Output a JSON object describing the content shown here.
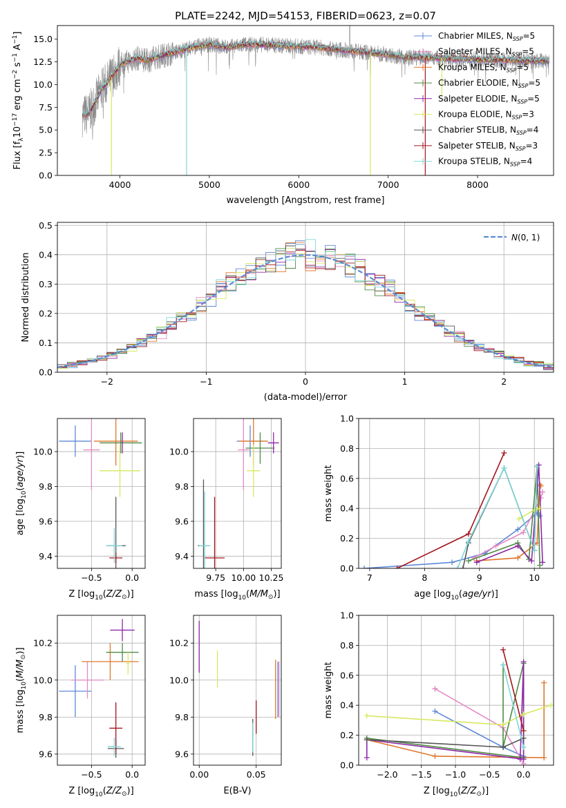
{
  "colors": {
    "Chabrier MILES": "#5e87d6",
    "Salpeter MILES": "#e58ac4",
    "Kroupa MILES": "#e0762a",
    "Chabrier ELODIE": "#4f8a43",
    "Salpeter ELODIE": "#8f27a8",
    "Kroupa ELODIE": "#d8e860",
    "Chabrier STELIB": "#555555",
    "Salpeter STELIB": "#a3141d",
    "Kroupa STELIB": "#7fd6d8",
    "gray": "#8a8a8a",
    "grid": "#b0b0b0",
    "normal": "#5b8ad6"
  },
  "chart_data": [
    {
      "id": "spectrum",
      "type": "line",
      "title": "PLATE=2242, MJD=54153, FIBERID=0623, z=0.07",
      "xlabel": "wavelength [Angstrom, rest frame]",
      "ylabel": "Flux [f_λ 10^-17 erg cm^-2 s^-1 A^-1]",
      "xlim": [
        3300,
        8850
      ],
      "ylim": [
        0,
        16.5
      ],
      "xticks": [
        4000,
        5000,
        6000,
        7000,
        8000
      ],
      "yticks": [
        0.0,
        2.5,
        5.0,
        7.5,
        10.0,
        12.5,
        15.0
      ],
      "grid": false,
      "legend_position": "right",
      "legend": [
        {
          "model": "Chabrier MILES",
          "nssp": "5"
        },
        {
          "model": "Salpeter MILES",
          "nssp": "5"
        },
        {
          "model": "Kroupa MILES",
          "nssp": "5"
        },
        {
          "model": "Chabrier ELODIE",
          "nssp": "5"
        },
        {
          "model": "Salpeter ELODIE",
          "nssp": "5"
        },
        {
          "model": "Kroupa ELODIE",
          "nssp": "3"
        },
        {
          "model": "Chabrier STELIB",
          "nssp": "4"
        },
        {
          "model": "Salpeter STELIB",
          "nssp": "3"
        },
        {
          "model": "Kroupa STELIB",
          "nssp": "4"
        }
      ],
      "continuum": {
        "x": [
          3580,
          3650,
          3700,
          3750,
          3800,
          3850,
          3900,
          3950,
          4000,
          4100,
          4200,
          4300,
          4400,
          4600,
          4800,
          5000,
          5200,
          5400,
          5600,
          5800,
          6000,
          6200,
          6400,
          6600,
          6800,
          7000,
          7200,
          7400,
          7600,
          7800,
          8000,
          8200,
          8400,
          8600,
          8800
        ],
        "y": [
          6.6,
          6.8,
          7.6,
          8.6,
          9.6,
          10.1,
          10.8,
          11.3,
          12.2,
          12.6,
          12.9,
          12.6,
          13.0,
          13.5,
          14.1,
          14.4,
          14.1,
          14.4,
          14.4,
          14.3,
          14.2,
          14.1,
          13.9,
          13.7,
          13.5,
          13.3,
          13.0,
          13.0,
          12.9,
          12.8,
          12.8,
          12.7,
          12.7,
          12.6,
          12.6
        ]
      },
      "spikes": [
        {
          "x": 3905,
          "y": 0.0,
          "series": "Kroupa ELODIE"
        },
        {
          "x": 4745,
          "y": 0.0,
          "series": "Kroupa STELIB"
        },
        {
          "x": 6800,
          "y": 0.0,
          "series": "Kroupa ELODIE"
        },
        {
          "x": 7415,
          "y": 0.0,
          "series": "Salpeter STELIB"
        },
        {
          "x": 7600,
          "y": 8.7,
          "series": "Kroupa ELODIE"
        },
        {
          "x": 6570,
          "y": 17.5,
          "series": "gray"
        }
      ]
    },
    {
      "id": "residuals",
      "type": "bar",
      "xlabel": "(data-model)/error",
      "ylabel": "Normed distribution",
      "xlim": [
        -2.5,
        2.5
      ],
      "ylim": [
        0,
        0.51
      ],
      "xticks": [
        -2,
        -1,
        0,
        1,
        2
      ],
      "xticklabels": [
        "−2",
        "−1",
        "0",
        "1",
        "2"
      ],
      "yticks": [
        0.0,
        0.1,
        0.2,
        0.3,
        0.4,
        0.5
      ],
      "grid": true,
      "bin_width": 0.1,
      "series_count": 9,
      "legend_position": "top-right",
      "legend": "N(0,1)"
    },
    {
      "id": "age-vs-Z",
      "type": "scatter",
      "xlabel": "Z [log10(Z/Z⊙)]",
      "ylabel": "age  [log10(age/yr)]",
      "xlim": [
        -0.92,
        0.16
      ],
      "ylim": [
        9.33,
        10.19
      ],
      "xticks": [
        -0.5,
        0.0
      ],
      "xticklabels": [
        "−0.5",
        "0.0"
      ],
      "yticks": [
        9.4,
        9.6,
        9.8,
        10.0
      ],
      "grid": true,
      "points": [
        {
          "series": "Chabrier MILES",
          "x": -0.7,
          "y": 10.06,
          "xerr": 0.2,
          "yerr": 0.09
        },
        {
          "series": "Salpeter MILES",
          "x": -0.5,
          "y": 10.01,
          "xerr": 0.1,
          "yerr": 0.23
        },
        {
          "series": "Kroupa MILES",
          "x": -0.2,
          "y": 10.06,
          "xerr": 0.27,
          "yerr": 0.14
        },
        {
          "series": "Chabrier ELODIE",
          "x": -0.14,
          "y": 10.05,
          "xerr": 0.26,
          "yerr": 0.06
        },
        {
          "series": "Salpeter ELODIE",
          "x": -0.12,
          "y": 10.05,
          "xerr": 0.01,
          "yerr": 0.06
        },
        {
          "series": "Kroupa ELODIE",
          "x": -0.15,
          "y": 9.89,
          "xerr": 0.25,
          "yerr": 0.15
        },
        {
          "series": "Chabrier STELIB",
          "x": -0.2,
          "y": 9.46,
          "xerr": 0.12,
          "yerr": 0.28
        },
        {
          "series": "Salpeter STELIB",
          "x": -0.2,
          "y": 9.39,
          "xerr": 0.08,
          "yerr": 0.03
        },
        {
          "series": "Kroupa STELIB",
          "x": -0.22,
          "y": 9.46,
          "xerr": 0.1,
          "yerr": 0.1
        }
      ]
    },
    {
      "id": "age-vs-mass",
      "type": "scatter",
      "xlabel": "mass [log10(M/M⊙)]",
      "ylabel": "",
      "xlim": [
        9.55,
        10.34
      ],
      "ylim": [
        9.33,
        10.19
      ],
      "xticks": [
        9.75,
        10.0,
        10.25
      ],
      "xticklabels": [
        "9.75",
        "10.00",
        "10.25"
      ],
      "yticks": [
        9.4,
        9.6,
        9.8,
        10.0
      ],
      "grid": true,
      "points": [
        {
          "series": "Chabrier MILES",
          "x": 10.06,
          "y": 10.06,
          "xerr": 0.12,
          "yerr": 0.09
        },
        {
          "series": "Salpeter MILES",
          "x": 10.0,
          "y": 10.01,
          "xerr": 0.05,
          "yerr": 0.23
        },
        {
          "series": "Kroupa MILES",
          "x": 10.09,
          "y": 10.06,
          "xerr": 0.13,
          "yerr": 0.14
        },
        {
          "series": "Chabrier ELODIE",
          "x": 10.15,
          "y": 10.02,
          "xerr": 0.13,
          "yerr": 0.09
        },
        {
          "series": "Salpeter ELODIE",
          "x": 10.27,
          "y": 10.05,
          "xerr": 0.05,
          "yerr": 0.06
        },
        {
          "series": "Kroupa ELODIE",
          "x": 10.09,
          "y": 9.89,
          "xerr": 0.06,
          "yerr": 0.15
        },
        {
          "series": "Chabrier STELIB",
          "x": 9.64,
          "y": 9.46,
          "xerr": 0.05,
          "yerr": 0.38
        },
        {
          "series": "Salpeter STELIB",
          "x": 9.74,
          "y": 9.39,
          "xerr": 0.09,
          "yerr": 0.35
        },
        {
          "series": "Kroupa STELIB",
          "x": 9.65,
          "y": 9.46,
          "xerr": 0.05,
          "yerr": 0.31
        }
      ]
    },
    {
      "id": "weight-vs-age",
      "type": "line",
      "xlabel": "age  [log10(age/yr)]",
      "ylabel": "mass weight",
      "xlim": [
        6.8,
        10.35
      ],
      "ylim": [
        0,
        1.0
      ],
      "xticks": [
        7,
        8,
        9,
        10
      ],
      "yticks": [
        0.0,
        0.2,
        0.4,
        0.6,
        0.8,
        1.0
      ],
      "grid": true,
      "series": [
        {
          "name": "Chabrier MILES",
          "x": [
            6.9,
            8.5,
            9.1,
            9.7,
            10.05,
            10.1
          ],
          "y": [
            0.0,
            0.04,
            0.1,
            0.26,
            0.37,
            0.35
          ]
        },
        {
          "name": "Salpeter MILES",
          "x": [
            8.9,
            9.3,
            9.8,
            10.12,
            10.15
          ],
          "y": [
            0.07,
            0.15,
            0.24,
            0.47,
            0.51
          ]
        },
        {
          "name": "Kroupa MILES",
          "x": [
            8.95,
            9.7,
            10.05,
            10.1,
            10.12
          ],
          "y": [
            0.05,
            0.07,
            0.17,
            0.56,
            0.55
          ]
        },
        {
          "name": "Chabrier ELODIE",
          "x": [
            8.8,
            9.7,
            9.9,
            10.05,
            10.1
          ],
          "y": [
            0.05,
            0.17,
            0.06,
            0.68,
            0.02
          ]
        },
        {
          "name": "Salpeter ELODIE",
          "x": [
            8.95,
            9.7,
            9.95,
            10.08,
            10.15
          ],
          "y": [
            0.04,
            0.15,
            0.05,
            0.69,
            0.04
          ]
        },
        {
          "name": "Kroupa ELODIE",
          "x": [
            9.72,
            10.0,
            10.1
          ],
          "y": [
            0.33,
            0.39,
            0.4
          ]
        },
        {
          "name": "Chabrier STELIB",
          "x": [
            8.7,
            8.8,
            9.45,
            10.0,
            10.05
          ],
          "y": [
            0.0,
            0.17,
            0.67,
            0.12,
            0.68
          ]
        },
        {
          "name": "Salpeter STELIB",
          "x": [
            7.5,
            8.8,
            9.45
          ],
          "y": [
            0.0,
            0.23,
            0.77
          ]
        },
        {
          "name": "Kroupa STELIB",
          "x": [
            8.6,
            8.8,
            9.45,
            10.0,
            10.05
          ],
          "y": [
            0.0,
            0.18,
            0.67,
            0.12,
            0.68
          ]
        }
      ]
    },
    {
      "id": "mass-vs-Z",
      "type": "scatter",
      "xlabel": "Z [log10(Z/Z⊙)]",
      "ylabel": "mass [log10(M/M⊙)]",
      "xlim": [
        -0.92,
        0.16
      ],
      "ylim": [
        9.54,
        10.35
      ],
      "xticks": [
        -0.5,
        0.0
      ],
      "xticklabels": [
        "−0.5",
        "0.0"
      ],
      "yticks": [
        9.6,
        9.8,
        10.0,
        10.2
      ],
      "grid": true,
      "points": [
        {
          "series": "Chabrier MILES",
          "x": -0.7,
          "y": 9.94,
          "xerr": 0.2,
          "yerr": 0.14
        },
        {
          "series": "Salpeter MILES",
          "x": -0.55,
          "y": 10.0,
          "xerr": 0.2,
          "yerr": 0.1
        },
        {
          "series": "Kroupa MILES",
          "x": -0.27,
          "y": 10.1,
          "xerr": 0.35,
          "yerr": 0.1
        },
        {
          "series": "Chabrier ELODIE",
          "x": -0.12,
          "y": 10.15,
          "xerr": 0.2,
          "yerr": 0.05
        },
        {
          "series": "Salpeter ELODIE",
          "x": -0.12,
          "y": 10.27,
          "xerr": 0.15,
          "yerr": 0.06
        },
        {
          "series": "Kroupa ELODIE",
          "x": -0.05,
          "y": 10.09,
          "xerr": 0.02,
          "yerr": 0.06
        },
        {
          "series": "Chabrier STELIB",
          "x": -0.2,
          "y": 9.63,
          "xerr": 0.1,
          "yerr": 0.05
        },
        {
          "series": "Salpeter STELIB",
          "x": -0.2,
          "y": 9.74,
          "xerr": 0.08,
          "yerr": 0.14
        },
        {
          "series": "Kroupa STELIB",
          "x": -0.22,
          "y": 9.64,
          "xerr": 0.08,
          "yerr": 0.05
        }
      ]
    },
    {
      "id": "mass-vs-EBV",
      "type": "scatter",
      "xlabel": "E(B-V)",
      "ylabel": "",
      "xlim": [
        -0.005,
        0.072
      ],
      "ylim": [
        9.54,
        10.35
      ],
      "xticks": [
        0.0,
        0.05
      ],
      "xticklabels": [
        "0.00",
        "0.05"
      ],
      "yticks": [
        9.6,
        9.8,
        10.0,
        10.2
      ],
      "grid": true,
      "points": [
        {
          "series": "Salpeter ELODIE",
          "x": 0.0,
          "y": 10.18,
          "xerr": 0.0,
          "yerr": 0.14
        },
        {
          "series": "Kroupa ELODIE",
          "x": 0.016,
          "y": 10.06,
          "xerr": 0.0,
          "yerr": 0.1
        },
        {
          "series": "Chabrier STELIB",
          "x": 0.047,
          "y": 9.69,
          "xerr": 0.0,
          "yerr": 0.1
        },
        {
          "series": "Kroupa STELIB",
          "x": 0.047,
          "y": 9.69,
          "xerr": 0.0,
          "yerr": 0.08
        },
        {
          "series": "Salpeter STELIB",
          "x": 0.05,
          "y": 9.8,
          "xerr": 0.0,
          "yerr": 0.09
        },
        {
          "series": "Kroupa MILES",
          "x": 0.067,
          "y": 9.95,
          "xerr": 0.0,
          "yerr": 0.16
        },
        {
          "series": "Chabrier MILES",
          "x": 0.069,
          "y": 9.95,
          "xerr": 0.0,
          "yerr": 0.15
        },
        {
          "series": "Salpeter MILES",
          "x": 0.07,
          "y": 9.95,
          "xerr": 0.0,
          "yerr": 0.15
        }
      ]
    },
    {
      "id": "weight-vs-Z",
      "type": "line",
      "xlabel": "Z [log10(Z/Z⊙)]",
      "ylabel": "mass weight",
      "xlim": [
        -2.42,
        0.44
      ],
      "ylim": [
        0,
        1.0
      ],
      "xticks": [
        -2.0,
        -1.5,
        -1.0,
        -0.5,
        0.0
      ],
      "xticklabels": [
        "−2.0",
        "−1.5",
        "−1.0",
        "−0.5",
        "0.0"
      ],
      "yticks": [
        0.0,
        0.2,
        0.4,
        0.6,
        0.8,
        1.0
      ],
      "grid": true,
      "series": [
        {
          "name": "Chabrier MILES",
          "x": [
            -1.3,
            -0.3,
            0.0
          ],
          "y": [
            0.36,
            0.12,
            0.06
          ]
        },
        {
          "name": "Salpeter MILES",
          "x": [
            -1.3,
            -1.3,
            -0.3,
            0.0
          ],
          "y": [
            0.51,
            0.51,
            0.25,
            0.01
          ]
        },
        {
          "name": "Kroupa MILES",
          "x": [
            -2.3,
            -1.3,
            0.3,
            0.3
          ],
          "y": [
            0.17,
            0.06,
            0.05,
            0.55
          ]
        },
        {
          "name": "Chabrier ELODIE",
          "x": [
            -2.3,
            0.0,
            0.0,
            -0.3,
            -0.3
          ],
          "y": [
            0.18,
            0.05,
            0.68,
            0.12,
            0.67
          ]
        },
        {
          "name": "Salpeter ELODIE",
          "x": [
            -2.3,
            -2.3,
            0.0,
            0.0,
            -0.05
          ],
          "y": [
            0.05,
            0.17,
            0.04,
            0.69,
            0.04
          ]
        },
        {
          "name": "Kroupa ELODIE",
          "x": [
            -2.3,
            -0.3,
            0.0,
            0.4
          ],
          "y": [
            0.33,
            0.27,
            0.34,
            0.4
          ]
        },
        {
          "name": "Chabrier STELIB",
          "x": [
            -2.3,
            -0.3,
            0.0
          ],
          "y": [
            0.17,
            0.12,
            0.18
          ]
        },
        {
          "name": "Salpeter STELIB",
          "x": [
            -0.3,
            0.0
          ],
          "y": [
            0.77,
            0.23
          ]
        },
        {
          "name": "Kroupa STELIB",
          "x": [
            -0.3,
            0.0
          ],
          "y": [
            0.67,
            0.12
          ]
        }
      ]
    }
  ]
}
